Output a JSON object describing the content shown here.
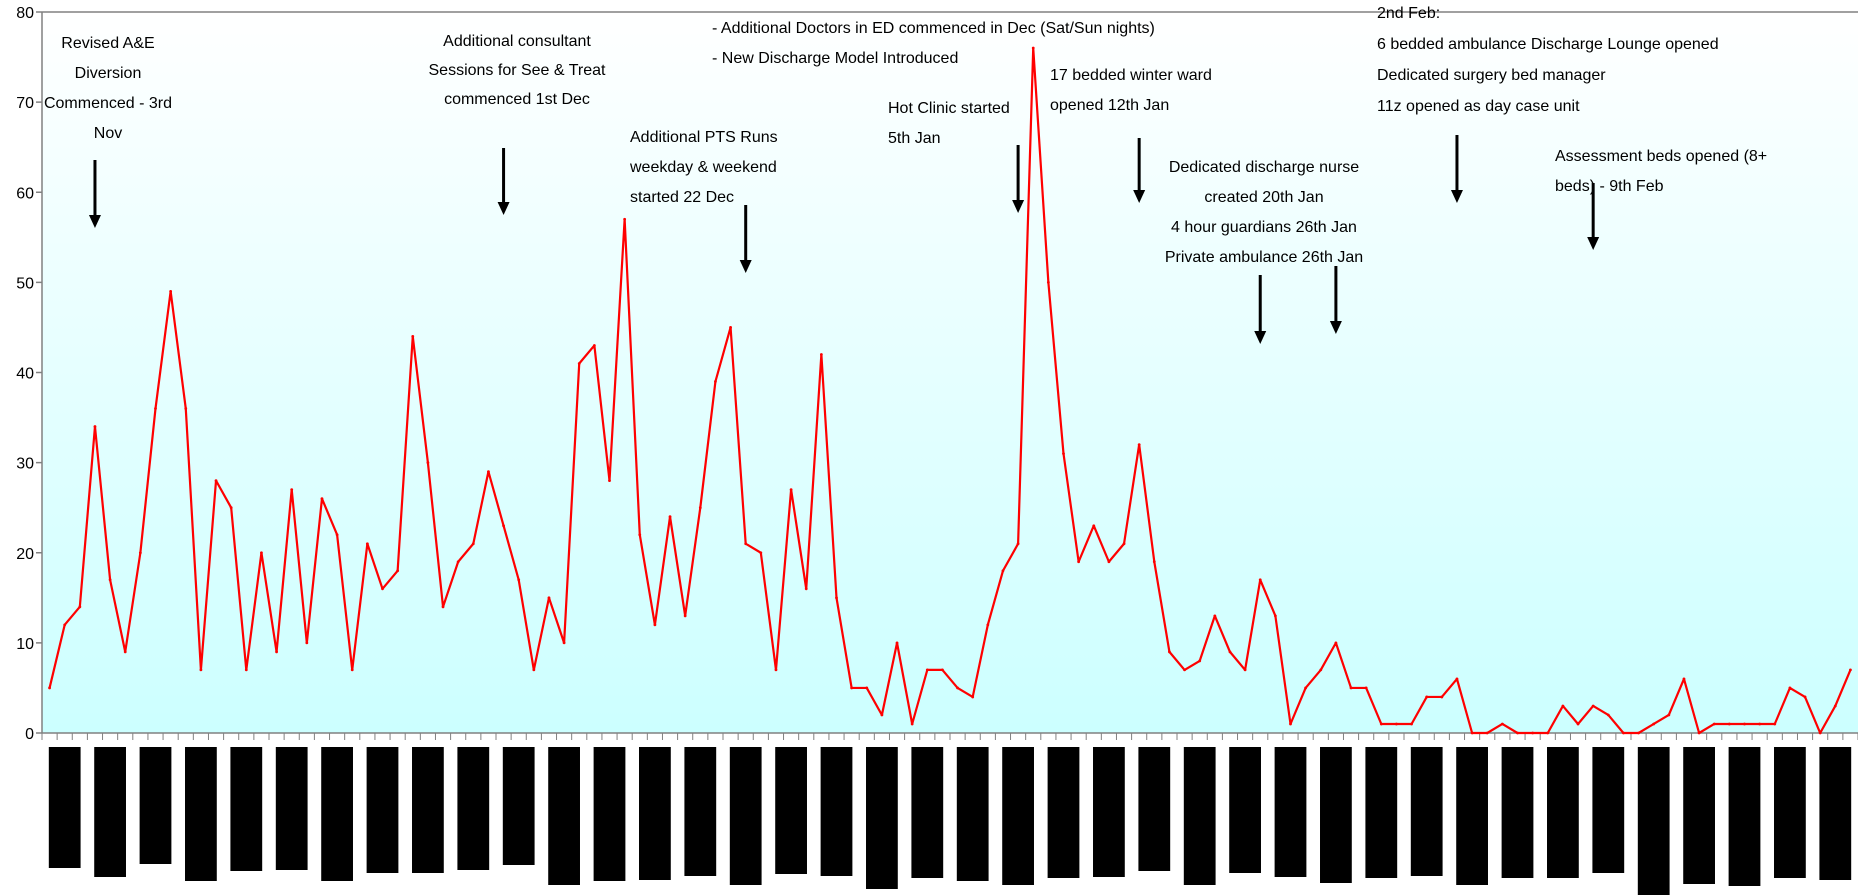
{
  "chart_data": {
    "type": "line",
    "title": "",
    "xlabel": "",
    "ylabel": "",
    "ylim": [
      0,
      80
    ],
    "yticks": [
      0,
      10,
      20,
      30,
      40,
      50,
      60,
      70,
      80
    ],
    "grid": false,
    "legend": "none",
    "colors": {
      "line": "#ff0000",
      "plot_top": "#ffffff",
      "plot_bottom": "#ccffff",
      "axis": "#808080",
      "arrow": "#000000",
      "category_block": "#000000"
    },
    "series": [
      {
        "values": [
          5,
          12,
          14,
          34,
          17,
          9,
          20,
          36,
          49,
          36,
          7,
          28,
          25,
          7,
          20,
          9,
          27,
          10,
          26,
          22,
          7,
          21,
          16,
          18,
          44,
          30,
          14,
          19,
          21,
          29,
          23,
          17,
          7,
          15,
          10,
          41,
          43,
          28,
          57,
          22,
          12,
          24,
          13,
          25,
          39,
          45,
          21,
          20,
          7,
          27,
          16,
          42,
          15,
          5,
          5,
          2,
          10,
          1,
          7,
          7,
          5,
          4,
          12,
          18,
          21,
          76,
          50,
          31,
          19,
          23,
          19,
          21,
          32,
          19,
          9,
          7,
          8,
          13,
          9,
          7,
          17,
          13,
          1,
          5,
          7,
          10,
          5,
          5,
          1,
          1,
          1,
          4,
          4,
          6,
          0,
          0,
          1,
          0,
          0,
          0,
          3,
          1,
          3,
          2,
          0,
          0,
          1,
          2,
          6,
          0,
          1,
          1,
          1,
          1,
          1,
          5,
          4,
          0,
          3,
          7
        ]
      }
    ],
    "annotations": [
      {
        "lines": [
          "Revised A&E",
          "Diversion",
          "Commenced - 3rd",
          "Nov"
        ],
        "arrow_index": 3
      },
      {
        "lines": [
          "Additional consultant",
          "Sessions for See & Treat",
          "commenced 1st Dec"
        ],
        "arrow_index": 30
      },
      {
        "lines": [
          "- Additional Doctors in ED commenced in Dec (Sat/Sun nights)",
          "- New Discharge Model Introduced"
        ],
        "arrow_index": null
      },
      {
        "lines": [
          "Additional PTS Runs",
          "weekday & weekend",
          "started 22 Dec"
        ],
        "arrow_index": 46
      },
      {
        "lines": [
          "Hot Clinic started",
          "5th Jan"
        ],
        "arrow_index": 64
      },
      {
        "lines": [
          "17 bedded winter ward",
          "opened 12th Jan"
        ],
        "arrow_index": 72
      },
      {
        "lines": [
          "Dedicated discharge nurse",
          "created 20th Jan",
          "4 hour guardians 26th Jan",
          "Private ambulance 26th Jan"
        ],
        "arrow_index": 80
      },
      {
        "lines": [],
        "arrow_index": 85
      },
      {
        "lines": [
          "2nd Feb:",
          "6 bedded ambulance Discharge Lounge opened",
          "Dedicated surgery bed manager",
          "11z opened as day case unit"
        ],
        "arrow_index": 93
      },
      {
        "lines": [
          "Assessment beds opened (8+",
          "beds) - 9th Feb"
        ],
        "arrow_index": 102
      }
    ]
  }
}
